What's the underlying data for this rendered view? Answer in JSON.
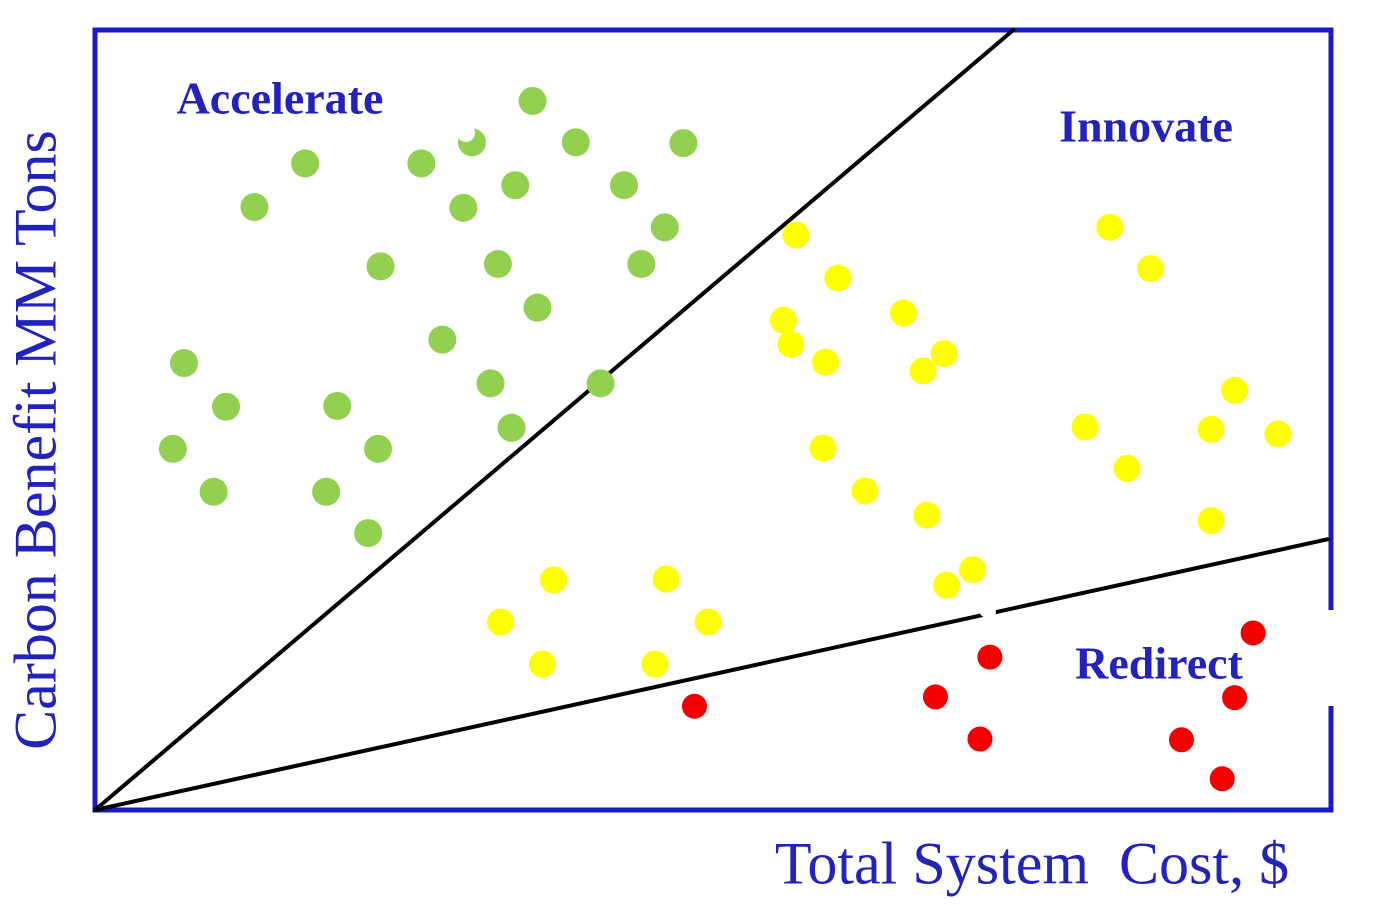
{
  "labels": {
    "accelerate": "Accelerate",
    "innovate": "Innovate",
    "redirect": "Redirect",
    "xlabel": "Total System  Cost, $",
    "ylabel": "Carbon Benefit MM Tons"
  },
  "colors": {
    "text_blue": "#2222BE",
    "frame_blue": "#1A1ACB",
    "boundary_line": "#000000",
    "green_series": "#92D050",
    "yellow_series": "#FFFF00",
    "red_series": "#F20000",
    "background": "#FFFFFF"
  },
  "chart_data": {
    "type": "scatter",
    "title": "",
    "xlabel": "Total System  Cost, $",
    "ylabel": "Carbon Benefit MM Tons",
    "axes_note": "No numeric ticks or gridlines shown; coordinates below are percent of plot area, x: 0=left(origin) to 100=right, y: 0=bottom to 100=top",
    "xlim": [
      0,
      100
    ],
    "ylim": [
      0,
      100
    ],
    "grid": false,
    "legend": "none (regions labeled inline: Accelerate upper-left, Innovate middle/right, Redirect lower-right)",
    "line_color": "#000000",
    "boundary_lines": [
      {
        "name": "upper-boundary-line",
        "from": [
          0,
          0
        ],
        "to": [
          74.3,
          100
        ]
      },
      {
        "name": "lower-boundary-line",
        "from": [
          0,
          0
        ],
        "to": [
          99.7,
          34.7
        ]
      }
    ],
    "annotations": [
      {
        "text": "Accelerate",
        "x": 15.0,
        "y": 91.3
      },
      {
        "text": "Innovate",
        "x": 85.0,
        "y": 87.7
      },
      {
        "text": "Redirect",
        "x": 86.1,
        "y": 18.8
      }
    ],
    "series": [
      {
        "id": "green",
        "name": "Accelerate (green dots)",
        "color": "#92D050",
        "marker_radius_px": 14,
        "points": [
          [
            35.4,
            90.9
          ],
          [
            30.5,
            85.6
          ],
          [
            38.9,
            85.6
          ],
          [
            47.6,
            85.5
          ],
          [
            17.0,
            82.9
          ],
          [
            26.4,
            82.9
          ],
          [
            34.0,
            80.1
          ],
          [
            42.8,
            80.1
          ],
          [
            12.9,
            77.3
          ],
          [
            29.8,
            77.2
          ],
          [
            46.1,
            74.7
          ],
          [
            23.1,
            69.7
          ],
          [
            32.6,
            70.0
          ],
          [
            44.2,
            70.0
          ],
          [
            35.8,
            64.4
          ],
          [
            28.1,
            60.3
          ],
          [
            7.2,
            57.3
          ],
          [
            32.0,
            54.7
          ],
          [
            40.9,
            54.7
          ],
          [
            10.6,
            51.7
          ],
          [
            19.6,
            51.8
          ],
          [
            33.7,
            49.0
          ],
          [
            6.3,
            46.3
          ],
          [
            22.9,
            46.3
          ],
          [
            9.6,
            40.8
          ],
          [
            18.7,
            40.8
          ],
          [
            22.1,
            35.5
          ]
        ]
      },
      {
        "id": "yellow",
        "name": "Innovate (yellow dots)",
        "color": "#FFFF00",
        "marker_radius_px": 13.5,
        "points": [
          [
            56.7,
            73.7
          ],
          [
            60.1,
            68.2
          ],
          [
            65.4,
            63.7
          ],
          [
            55.7,
            62.8
          ],
          [
            56.3,
            59.7
          ],
          [
            59.1,
            57.4
          ],
          [
            68.7,
            58.5
          ],
          [
            67.0,
            56.3
          ],
          [
            58.9,
            46.4
          ],
          [
            62.3,
            40.9
          ],
          [
            67.3,
            37.8
          ],
          [
            71.0,
            30.8
          ],
          [
            68.9,
            28.8
          ],
          [
            37.1,
            29.5
          ],
          [
            46.2,
            29.6
          ],
          [
            32.8,
            24.1
          ],
          [
            49.6,
            24.1
          ],
          [
            36.2,
            18.7
          ],
          [
            45.3,
            18.7
          ],
          [
            82.1,
            74.7
          ],
          [
            85.4,
            69.4
          ],
          [
            92.2,
            53.8
          ],
          [
            80.1,
            49.1
          ],
          [
            90.3,
            48.8
          ],
          [
            95.7,
            48.2
          ],
          [
            83.5,
            43.8
          ],
          [
            90.3,
            37.1
          ]
        ]
      },
      {
        "id": "red",
        "name": "Redirect (red dots)",
        "color": "#F20000",
        "marker_radius_px": 12.5,
        "points": [
          [
            48.5,
            13.3
          ],
          [
            72.4,
            19.6
          ],
          [
            68.0,
            14.5
          ],
          [
            71.6,
            9.1
          ],
          [
            93.7,
            22.7
          ],
          [
            92.2,
            14.4
          ],
          [
            87.9,
            9.0
          ],
          [
            91.2,
            4.0
          ]
        ]
      }
    ]
  }
}
